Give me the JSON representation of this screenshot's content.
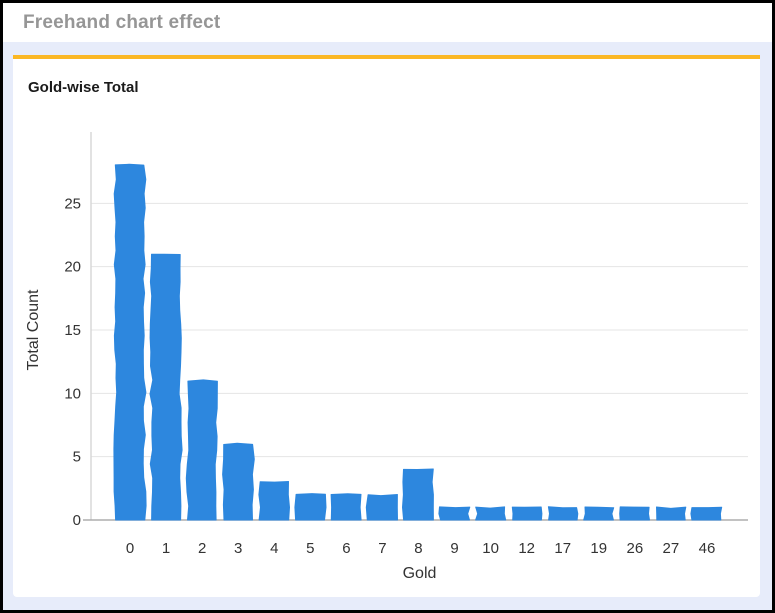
{
  "window": {
    "title": "Freehand chart effect"
  },
  "card": {
    "title": "Gold-wise Total"
  },
  "chart_data": {
    "type": "bar",
    "title": "Gold-wise Total",
    "categories": [
      "0",
      "1",
      "2",
      "3",
      "4",
      "5",
      "6",
      "7",
      "8",
      "9",
      "10",
      "12",
      "17",
      "19",
      "26",
      "27",
      "46"
    ],
    "values": [
      28,
      21,
      11,
      6,
      3,
      2,
      2,
      2,
      4,
      1,
      1,
      1,
      1,
      1,
      1,
      1,
      1
    ],
    "xlabel": "Gold",
    "ylabel": "Total Count",
    "ylim": [
      0,
      30
    ],
    "yticks": [
      0,
      5,
      10,
      15,
      20,
      25
    ],
    "grid": true,
    "legend": "none",
    "style": "freehand",
    "bar_color": "#2d87de"
  },
  "colors": {
    "accent_orange": "#fbb724",
    "page_background": "#e7ecfa",
    "bar_blue": "#2d87de",
    "header_text": "#969696",
    "gridline": "#e4e4e4",
    "axis_line": "#adadad",
    "tick_text": "#333333"
  }
}
